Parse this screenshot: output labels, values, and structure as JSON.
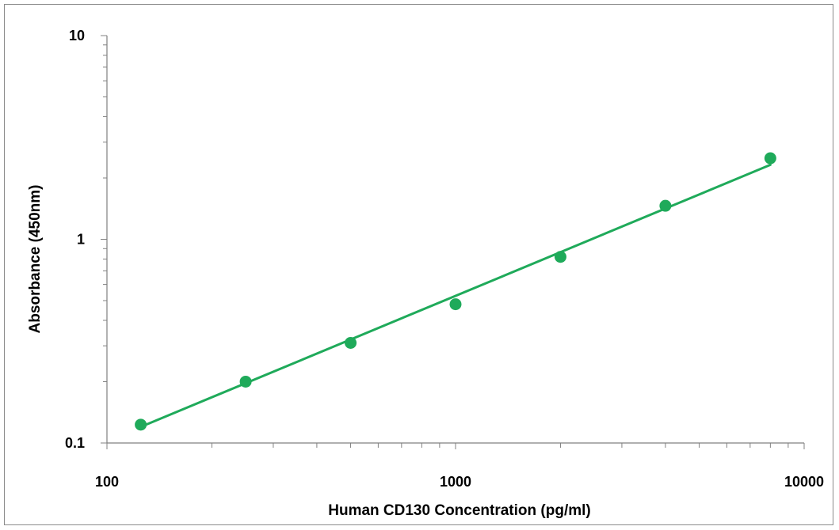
{
  "chart_data": {
    "type": "scatter",
    "title": "",
    "xlabel": "Human CD130 Concentration (pg/ml)",
    "ylabel": "Absorbance (450nm)",
    "x_scale": "log",
    "y_scale": "log",
    "xlim": [
      100,
      10000
    ],
    "ylim": [
      0.1,
      10
    ],
    "x_tick_labels": [
      "100",
      "1000",
      "10000"
    ],
    "y_tick_labels": [
      "0.1",
      "1",
      "10"
    ],
    "grid": false,
    "legend": "none",
    "series": [
      {
        "points": [
          {
            "x": 125,
            "y": 0.123
          },
          {
            "x": 250,
            "y": 0.2
          },
          {
            "x": 500,
            "y": 0.31
          },
          {
            "x": 1000,
            "y": 0.48
          },
          {
            "x": 2000,
            "y": 0.82
          },
          {
            "x": 4000,
            "y": 1.46
          },
          {
            "x": 8000,
            "y": 2.5
          }
        ],
        "color": "#1faa5a",
        "fit_line": {
          "from": {
            "x": 125,
            "y": 0.12
          },
          "to": {
            "x": 8000,
            "y": 2.32
          }
        }
      }
    ]
  }
}
